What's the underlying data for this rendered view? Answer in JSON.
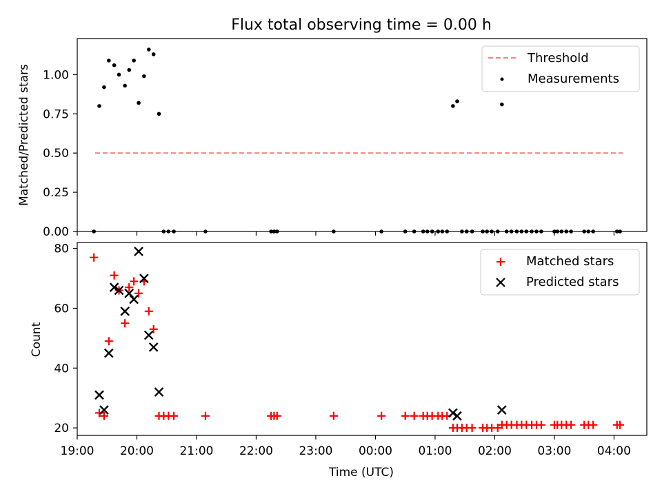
{
  "chart_data": [
    {
      "type": "scatter",
      "title": "Flux total observing time = 0.00 h",
      "xlabel": "",
      "ylabel": "Matched/Predicted stars",
      "xlim": [
        19.0,
        28.55
      ],
      "ylim": [
        0,
        1.23
      ],
      "x_tick_positions": [
        19,
        20,
        21,
        22,
        23,
        24,
        25,
        26,
        27,
        28
      ],
      "yticks": [
        0.0,
        0.25,
        0.5,
        0.75,
        1.0
      ],
      "ytick_labels": [
        "0.00",
        "0.25",
        "0.50",
        "0.75",
        "1.00"
      ],
      "legend": {
        "position": "upper right",
        "entries": [
          "Threshold",
          "Measurements"
        ]
      },
      "threshold": {
        "name": "Threshold",
        "value": 0.5,
        "x_range": [
          19.3,
          28.15
        ],
        "color": "#ff7f7f"
      },
      "series": [
        {
          "name": "Measurements",
          "color": "#000000",
          "marker": "dot",
          "x": [
            19.28,
            19.37,
            19.45,
            19.53,
            19.62,
            19.7,
            19.8,
            19.87,
            19.95,
            20.03,
            20.12,
            20.2,
            20.28,
            20.37,
            20.45,
            20.53,
            20.62,
            21.15,
            22.25,
            22.3,
            22.35,
            23.3,
            24.1,
            24.5,
            24.65,
            24.8,
            24.87,
            24.95,
            25.05,
            25.12,
            25.2,
            25.3,
            25.37,
            25.45,
            25.53,
            25.62,
            25.8,
            25.87,
            25.95,
            26.05,
            26.12,
            26.2,
            26.28,
            26.37,
            26.45,
            26.53,
            26.62,
            26.7,
            26.78,
            27.0,
            27.05,
            27.12,
            27.2,
            27.28,
            27.5,
            27.57,
            27.65,
            28.05,
            28.1
          ],
          "y": [
            0.0,
            0.8,
            0.92,
            1.09,
            1.06,
            1.0,
            0.93,
            1.03,
            1.09,
            0.82,
            0.99,
            1.16,
            1.13,
            0.75,
            0.0,
            0.0,
            0.0,
            0.0,
            0.0,
            0.0,
            0.0,
            0.0,
            0.0,
            0.0,
            0.0,
            0.0,
            0.0,
            0.0,
            0.0,
            0.0,
            0.0,
            0.8,
            0.83,
            0.0,
            0.0,
            0.0,
            0.0,
            0.0,
            0.0,
            0.0,
            0.81,
            0.0,
            0.0,
            0.0,
            0.0,
            0.0,
            0.0,
            0.0,
            0.0,
            0.0,
            0.0,
            0.0,
            0.0,
            0.0,
            0.0,
            0.0,
            0.0,
            0.0,
            0.0
          ]
        }
      ]
    },
    {
      "type": "scatter",
      "title": "",
      "xlabel": "Time (UTC)",
      "ylabel": "Count",
      "xlim": [
        19.0,
        28.55
      ],
      "ylim": [
        17.5,
        82
      ],
      "xticks": [
        19,
        20,
        21,
        22,
        23,
        24,
        25,
        26,
        27,
        28
      ],
      "xtick_labels": [
        "19:00",
        "20:00",
        "21:00",
        "22:00",
        "23:00",
        "00:00",
        "01:00",
        "02:00",
        "03:00",
        "04:00"
      ],
      "yticks": [
        20,
        40,
        60,
        80
      ],
      "ytick_labels": [
        "20",
        "40",
        "60",
        "80"
      ],
      "legend": {
        "position": "upper right",
        "entries": [
          "Matched stars",
          "Predicted stars"
        ]
      },
      "series": [
        {
          "name": "Matched stars",
          "color": "#ff0000",
          "marker": "plus",
          "x": [
            19.28,
            19.37,
            19.45,
            19.53,
            19.62,
            19.7,
            19.8,
            19.87,
            19.95,
            20.03,
            20.12,
            20.2,
            20.28,
            20.37,
            20.45,
            20.53,
            20.62,
            21.15,
            22.25,
            22.3,
            22.35,
            23.3,
            24.1,
            24.5,
            24.65,
            24.8,
            24.87,
            24.95,
            25.05,
            25.12,
            25.2,
            25.3,
            25.37,
            25.45,
            25.53,
            25.62,
            25.8,
            25.87,
            25.95,
            26.05,
            26.12,
            26.2,
            26.28,
            26.37,
            26.45,
            26.53,
            26.62,
            26.7,
            26.78,
            27.0,
            27.05,
            27.12,
            27.2,
            27.28,
            27.5,
            27.57,
            27.65,
            28.05,
            28.1
          ],
          "y": [
            77,
            25,
            24,
            49,
            71,
            66,
            55,
            67,
            69,
            65,
            69,
            59,
            53,
            24,
            24,
            24,
            24,
            24,
            24,
            24,
            24,
            24,
            24,
            24,
            24,
            24,
            24,
            24,
            24,
            24,
            24,
            20,
            20,
            20,
            20,
            20,
            20,
            20,
            20,
            20,
            21,
            21,
            21,
            21,
            21,
            21,
            21,
            21,
            21,
            21,
            21,
            21,
            21,
            21,
            21,
            21,
            21,
            21,
            21
          ]
        },
        {
          "name": "Predicted stars",
          "color": "#000000",
          "marker": "x",
          "x": [
            19.37,
            19.45,
            19.53,
            19.62,
            19.7,
            19.8,
            19.87,
            19.95,
            20.03,
            20.12,
            20.2,
            20.28,
            20.37,
            25.3,
            25.37,
            26.12
          ],
          "y": [
            31,
            26,
            45,
            67,
            66,
            59,
            65,
            63,
            79,
            70,
            51,
            47,
            32,
            25,
            24,
            26
          ]
        }
      ]
    }
  ]
}
